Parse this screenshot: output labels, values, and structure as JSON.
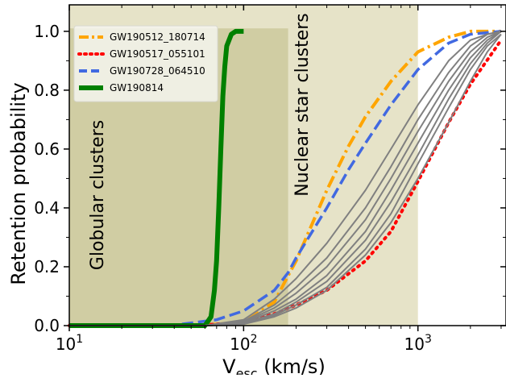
{
  "chart_data": {
    "type": "line",
    "xlabel": "V",
    "xlabel_sub": "esc",
    "xlabel_units": " (km/s)",
    "ylabel": "Retention probability",
    "xscale": "log",
    "xlim": [
      10,
      3200
    ],
    "ylim": [
      0,
      1.09
    ],
    "x_ticks": [
      {
        "value": 10,
        "base": "10",
        "exp": "1"
      },
      {
        "value": 100,
        "base": "10",
        "exp": "2"
      },
      {
        "value": 1000,
        "base": "10",
        "exp": "3"
      }
    ],
    "y_ticks": [
      {
        "value": 0.0,
        "label": "0.0"
      },
      {
        "value": 0.2,
        "label": "0.2"
      },
      {
        "value": 0.4,
        "label": "0.4"
      },
      {
        "value": 0.6,
        "label": "0.6"
      },
      {
        "value": 0.8,
        "label": "0.8"
      },
      {
        "value": 1.0,
        "label": "1.0"
      }
    ],
    "regions": [
      {
        "label": "Nuclear star clusters",
        "x_range": [
          10,
          1000
        ],
        "y_range": [
          0,
          1.09
        ],
        "color": "#e6e3c8",
        "text_color": "#800080"
      },
      {
        "label": "Globular clusters",
        "x_range": [
          10,
          180
        ],
        "y_range": [
          0,
          1.01
        ],
        "color": "#d0cda3",
        "text_color": "#ff00ff"
      }
    ],
    "legend": {
      "placement": "top-left"
    },
    "series": [
      {
        "name": "GW190512_180714",
        "color": "#ffa500",
        "style": "dashdot",
        "x": [
          10,
          50,
          100,
          150,
          180,
          200,
          300,
          400,
          500,
          700,
          1000,
          1500,
          2000,
          3000
        ],
        "y": [
          0,
          0,
          0.01,
          0.08,
          0.17,
          0.22,
          0.46,
          0.61,
          0.71,
          0.83,
          0.93,
          0.98,
          1.0,
          1.0
        ]
      },
      {
        "name": "GW190517_055101",
        "color": "#ff0000",
        "style": "dotted",
        "x": [
          10,
          50,
          100,
          150,
          200,
          300,
          500,
          700,
          1000,
          1500,
          2000,
          3000
        ],
        "y": [
          0,
          0,
          0.01,
          0.04,
          0.07,
          0.12,
          0.22,
          0.32,
          0.49,
          0.69,
          0.82,
          0.97
        ]
      },
      {
        "name": "GW190728_064510",
        "color": "#4169e1",
        "style": "dashed",
        "x": [
          10,
          40,
          70,
          100,
          150,
          180,
          200,
          300,
          400,
          500,
          700,
          1000,
          1500,
          2000,
          3000
        ],
        "y": [
          0,
          0.002,
          0.02,
          0.05,
          0.12,
          0.18,
          0.23,
          0.4,
          0.53,
          0.62,
          0.75,
          0.87,
          0.96,
          0.99,
          1.0
        ]
      },
      {
        "name": "GW190814",
        "color": "#008000",
        "style": "solid",
        "x": [
          10,
          60,
          65,
          68,
          70,
          72,
          74,
          76,
          78,
          80,
          85,
          90,
          100
        ],
        "y": [
          0,
          0,
          0.03,
          0.12,
          0.22,
          0.4,
          0.6,
          0.78,
          0.88,
          0.95,
          0.99,
          1.0,
          1.0
        ]
      },
      {
        "name": "",
        "color": "#808080",
        "style": "solid",
        "group": "gray",
        "x": [
          10,
          60,
          100,
          150,
          200,
          300,
          500,
          700,
          1000,
          1500,
          2000,
          2500,
          3000
        ],
        "y": [
          0,
          0,
          0.02,
          0.09,
          0.16,
          0.28,
          0.46,
          0.6,
          0.75,
          0.9,
          0.97,
          0.99,
          1.0
        ]
      },
      {
        "name": "",
        "color": "#808080",
        "style": "solid",
        "group": "gray",
        "x": [
          10,
          60,
          100,
          150,
          200,
          300,
          500,
          700,
          1000,
          1500,
          2000,
          2500,
          3000
        ],
        "y": [
          0,
          0,
          0.015,
          0.07,
          0.13,
          0.23,
          0.4,
          0.54,
          0.7,
          0.86,
          0.95,
          0.99,
          1.0
        ]
      },
      {
        "name": "",
        "color": "#808080",
        "style": "solid",
        "group": "gray",
        "x": [
          10,
          60,
          100,
          150,
          200,
          300,
          500,
          700,
          1000,
          1500,
          2000,
          2500,
          3000
        ],
        "y": [
          0,
          0,
          0.012,
          0.06,
          0.11,
          0.2,
          0.36,
          0.5,
          0.66,
          0.83,
          0.93,
          0.98,
          1.0
        ]
      },
      {
        "name": "",
        "color": "#808080",
        "style": "solid",
        "group": "gray",
        "x": [
          10,
          60,
          100,
          150,
          200,
          300,
          500,
          700,
          1000,
          1500,
          2000,
          2500,
          3000
        ],
        "y": [
          0,
          0,
          0.01,
          0.05,
          0.09,
          0.17,
          0.32,
          0.46,
          0.62,
          0.8,
          0.91,
          0.97,
          1.0
        ]
      },
      {
        "name": "",
        "color": "#808080",
        "style": "solid",
        "group": "gray",
        "x": [
          10,
          60,
          100,
          150,
          200,
          300,
          500,
          700,
          1000,
          1500,
          2000,
          2500,
          3000
        ],
        "y": [
          0,
          0,
          0.008,
          0.04,
          0.08,
          0.15,
          0.29,
          0.42,
          0.58,
          0.77,
          0.89,
          0.96,
          1.0
        ]
      },
      {
        "name": "",
        "color": "#808080",
        "style": "solid",
        "group": "gray",
        "x": [
          10,
          60,
          100,
          150,
          200,
          300,
          500,
          700,
          1000,
          1500,
          2000,
          2500,
          3000
        ],
        "y": [
          0,
          0,
          0.006,
          0.035,
          0.07,
          0.13,
          0.26,
          0.38,
          0.55,
          0.74,
          0.87,
          0.95,
          0.99
        ]
      },
      {
        "name": "",
        "color": "#808080",
        "style": "solid",
        "group": "gray",
        "x": [
          10,
          60,
          100,
          150,
          200,
          300,
          500,
          700,
          1000,
          1500,
          2000,
          2500,
          3000
        ],
        "y": [
          0,
          0,
          0.005,
          0.03,
          0.06,
          0.12,
          0.24,
          0.35,
          0.5,
          0.69,
          0.83,
          0.93,
          0.99
        ]
      }
    ]
  }
}
